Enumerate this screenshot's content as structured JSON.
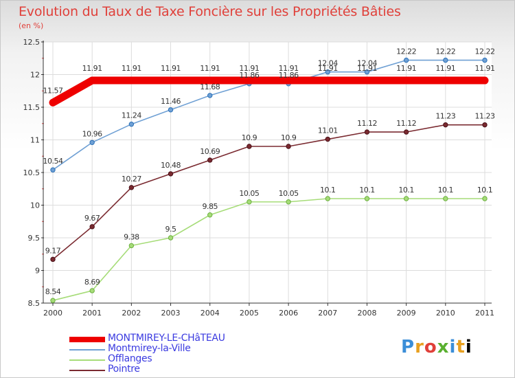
{
  "title": "Evolution du Taux de Taxe Foncière sur les Propriétés Bâties",
  "unit_label": "(en %)",
  "logo_text": "Proxiti",
  "chart_data": {
    "type": "line",
    "title": "Evolution du Taux de Taxe Foncière sur les Propriétés Bâties",
    "ylabel": "(en %)",
    "xlabel": "",
    "x": [
      "2000",
      "2001",
      "2002",
      "2003",
      "2004",
      "2005",
      "2006",
      "2007",
      "2008",
      "2009",
      "2010",
      "2011"
    ],
    "ylim": [
      8.5,
      12.5
    ],
    "yticks": [
      "8.5",
      "9",
      "9.5",
      "10",
      "10.5",
      "11",
      "11.5",
      "12",
      "12.5"
    ],
    "grid": true,
    "legend_position": "bottom",
    "series": [
      {
        "name": "MONTMIREY-LE-CHâTEAU",
        "color": "#ee0000",
        "values": [
          11.57,
          11.91,
          11.91,
          11.91,
          11.91,
          11.91,
          11.91,
          11.91,
          11.91,
          11.91,
          11.91,
          11.91
        ],
        "labels": [
          "11.57",
          "11.91",
          "11.91",
          "11.91",
          "11.91",
          "11.91",
          "11.91",
          "11.91",
          "11.91",
          "11.91",
          "11.91",
          "11.91"
        ]
      },
      {
        "name": "Montmirey-la-Ville",
        "color": "#6fa0d4",
        "values": [
          10.54,
          10.96,
          11.24,
          11.46,
          11.68,
          11.86,
          11.86,
          12.04,
          12.04,
          12.22,
          12.22,
          12.22
        ],
        "labels": [
          "10.54",
          "10.96",
          "11.24",
          "11.46",
          "11.68",
          "11.86",
          "11.86",
          "12.04",
          "12.04",
          "12.22",
          "12.22",
          "12.22"
        ]
      },
      {
        "name": "Offlanges",
        "color": "#a6dc78",
        "values": [
          8.54,
          8.69,
          9.38,
          9.5,
          9.85,
          10.05,
          10.05,
          10.1,
          10.1,
          10.1,
          10.1,
          10.1
        ],
        "labels": [
          "8.54",
          "8.69",
          "9.38",
          "9.5",
          "9.85",
          "10.05",
          "10.05",
          "10.1",
          "10.1",
          "10.1",
          "10.1",
          "10.1"
        ]
      },
      {
        "name": "Pointre",
        "color": "#7a2a30",
        "values": [
          9.17,
          9.67,
          10.27,
          10.48,
          10.69,
          10.9,
          10.9,
          11.01,
          11.12,
          11.12,
          11.23,
          11.23
        ],
        "labels": [
          "9.17",
          "9.67",
          "10.27",
          "10.48",
          "10.69",
          "10.9",
          "10.9",
          "11.01",
          "11.12",
          "11.12",
          "11.23",
          "11.23"
        ]
      }
    ]
  }
}
